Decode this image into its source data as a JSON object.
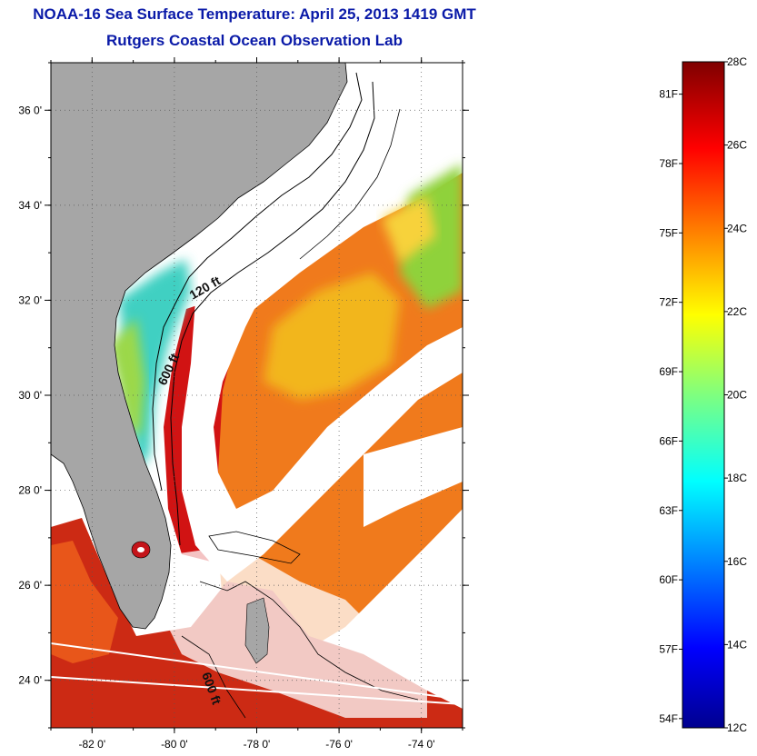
{
  "title": "NOAA-16 Sea Surface Temperature:  April 25, 2013 1419 GMT",
  "subtitle": "Rutgers Coastal Ocean Observation Lab",
  "map": {
    "lon_ticks": [
      "-82 0'",
      "-80 0'",
      "-78 0'",
      "-76 0'",
      "-74 0'"
    ],
    "lat_ticks": [
      "36 0'",
      "34 0'",
      "32 0'",
      "30 0'",
      "28 0'",
      "26 0'",
      "24 0'"
    ],
    "lon_range": [
      -83,
      -73
    ],
    "lat_range": [
      23,
      37
    ],
    "contour_labels": [
      "120 ft",
      "600 ft",
      "600 ft"
    ],
    "colors": {
      "land": "#a6a6a6",
      "cloud": "#ffffff",
      "gulf_stream": "#d40f0f",
      "offshore": "#f0701a"
    }
  },
  "colorbar": {
    "celsius_labels": [
      "28C",
      "26C",
      "24C",
      "22C",
      "20C",
      "18C",
      "16C",
      "14C",
      "12C"
    ],
    "fahrenheit_labels": [
      "81F",
      "78F",
      "75F",
      "72F",
      "69F",
      "66F",
      "63F",
      "60F",
      "57F",
      "54F"
    ],
    "range_c": [
      12,
      28
    ],
    "colormap": "jet"
  }
}
